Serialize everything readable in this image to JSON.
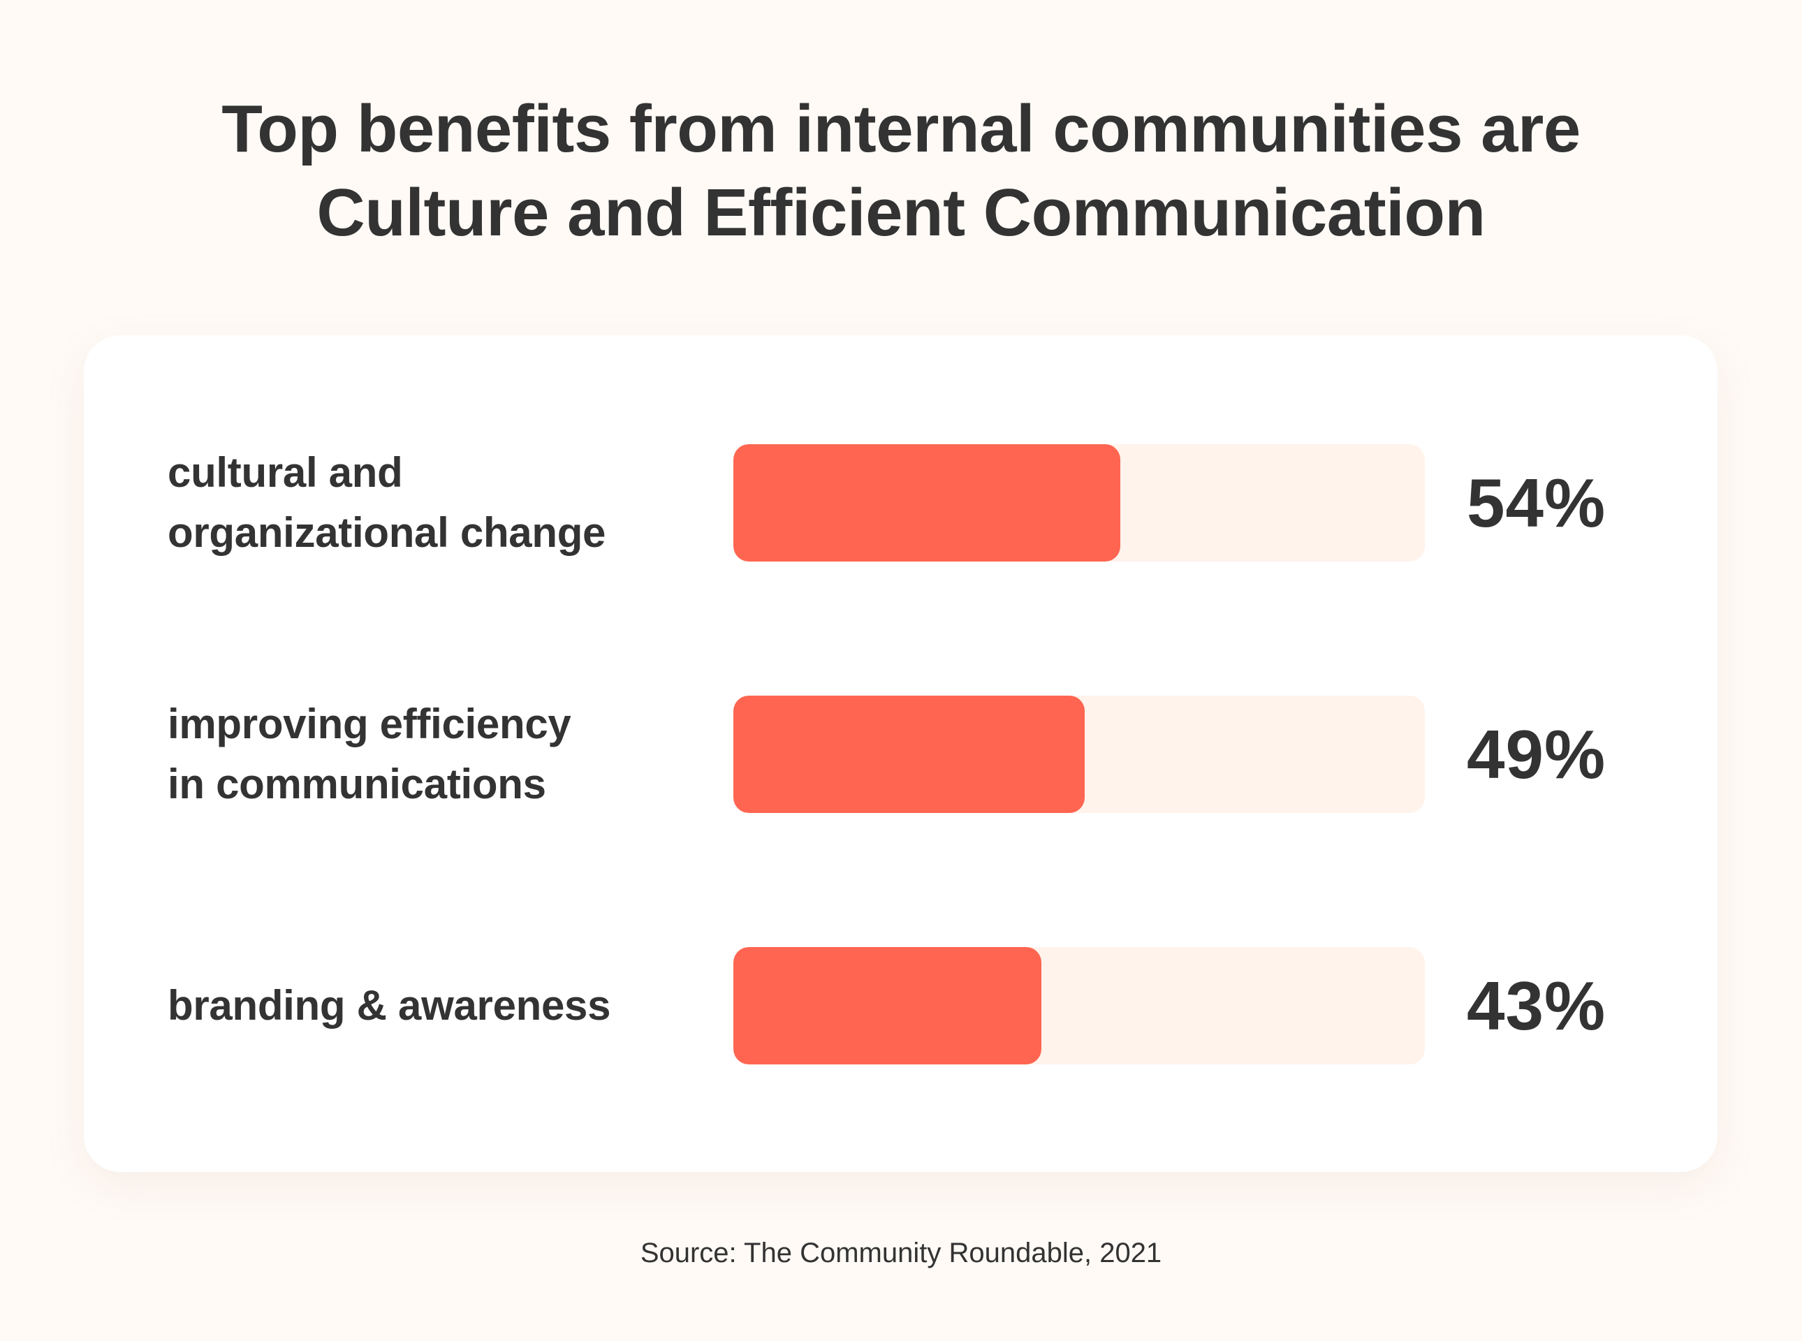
{
  "colors": {
    "background": "#FFFAF6",
    "card": "#FFFFFF",
    "bar_fill": "#FF6550",
    "bar_track": "#FFF3EC",
    "text": "#333333"
  },
  "title": {
    "line1": "Top benefits from internal communities are",
    "line2": "Culture and Efficient Communication"
  },
  "source": "Source: The Community Roundable, 2021",
  "chart_data": {
    "type": "bar",
    "orientation": "horizontal",
    "title": "Top benefits from internal communities are Culture and Efficient Communication",
    "categories": [
      "cultural and organizational change",
      "improving efficiency in communications",
      "branding & awareness"
    ],
    "category_lines": [
      [
        "cultural and",
        "organizational change"
      ],
      [
        "improving efficiency",
        "in communications"
      ],
      [
        "branding & awareness"
      ]
    ],
    "values": [
      54,
      49,
      43
    ],
    "value_labels": [
      "54%",
      "49%",
      "43%"
    ],
    "unit": "%",
    "xlim": [
      0,
      100
    ],
    "xlabel": "",
    "ylabel": "",
    "grid": false,
    "legend": "none",
    "source": "Source: The Community Roundable, 2021"
  }
}
